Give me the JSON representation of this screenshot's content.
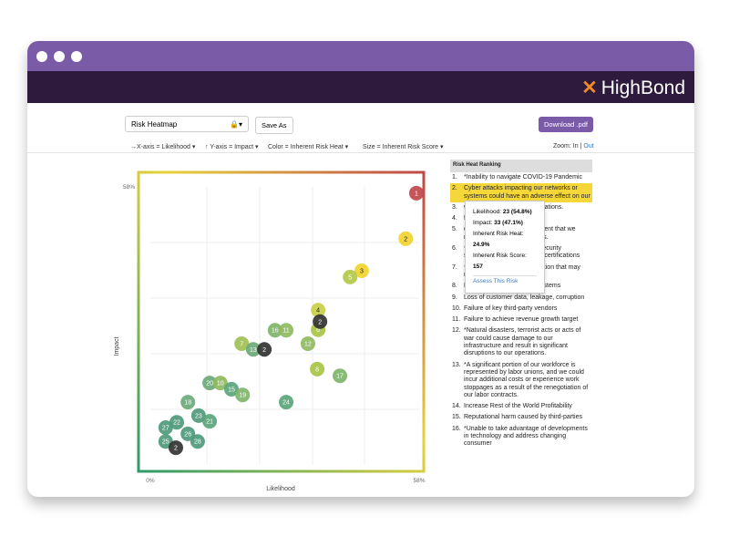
{
  "app": {
    "brand": "HighBond"
  },
  "toolbar": {
    "select": "Risk Heatmap",
    "save": "Save As",
    "download": "Download .pdf",
    "options": [
      "→X-axis = Likelihood ▾",
      "↑ Y-axis = Impact ▾",
      "Color = Inherent Risk Heat ▾",
      "Size = Inherent Risk Score ▾"
    ],
    "zoom_label": "Zoom:",
    "zoom_in": "In",
    "zoom_sep": "|",
    "zoom_out": "Out"
  },
  "chart_data": {
    "type": "scatter",
    "x_label": "Likelihood",
    "y_label": "Impact",
    "xlim": [
      0,
      58
    ],
    "ylim": [
      0,
      58
    ],
    "xticks": [
      {
        "value": 0,
        "label": "0%"
      },
      {
        "value": 58,
        "label": "58%"
      }
    ],
    "yticks": [
      {
        "value": 58,
        "label": "58%"
      }
    ],
    "points": [
      {
        "label": "1",
        "x": 57.4,
        "y": 56.7,
        "color": "#c0474a"
      },
      {
        "label": "2",
        "x": 55.1,
        "y": 47.2,
        "color": "#f2d431"
      },
      {
        "label": "3",
        "x": 45.6,
        "y": 40.5,
        "color": "#f2d431"
      },
      {
        "label": "5",
        "x": 43.1,
        "y": 39.2,
        "color": "#b3c84a"
      },
      {
        "label": "4",
        "x": 36.2,
        "y": 32.3,
        "color": "#c9cf45"
      },
      {
        "label": "6",
        "x": 36.2,
        "y": 28.2,
        "color": "#a9c447"
      },
      {
        "label": "2",
        "x": 36.6,
        "y": 29.9,
        "color": "#333333"
      },
      {
        "label": "16",
        "x": 26.9,
        "y": 28.1,
        "color": "#7fb46a"
      },
      {
        "label": "11",
        "x": 29.3,
        "y": 28.1,
        "color": "#8fba5f"
      },
      {
        "label": "12",
        "x": 34.0,
        "y": 25.3,
        "color": "#8fba5f"
      },
      {
        "label": "7",
        "x": 19.7,
        "y": 25.3,
        "color": "#9fc052"
      },
      {
        "label": "13",
        "x": 22.2,
        "y": 24.1,
        "color": "#6aa978"
      },
      {
        "label": "2",
        "x": 24.6,
        "y": 24.1,
        "color": "#333333"
      },
      {
        "label": "8",
        "x": 36.0,
        "y": 20.0,
        "color": "#a9c447"
      },
      {
        "label": "17",
        "x": 40.9,
        "y": 18.6,
        "color": "#7fb46a"
      },
      {
        "label": "20",
        "x": 12.8,
        "y": 17.1,
        "color": "#6aa978"
      },
      {
        "label": "10",
        "x": 15.1,
        "y": 17.1,
        "color": "#8fba5f"
      },
      {
        "label": "15",
        "x": 17.5,
        "y": 15.8,
        "color": "#5aa57a"
      },
      {
        "label": "19",
        "x": 19.9,
        "y": 14.6,
        "color": "#7fb46a"
      },
      {
        "label": "24",
        "x": 29.3,
        "y": 13.1,
        "color": "#5aa57a"
      },
      {
        "label": "18",
        "x": 8.1,
        "y": 13.1,
        "color": "#6aa978"
      },
      {
        "label": "23",
        "x": 10.4,
        "y": 10.3,
        "color": "#4f9a7c"
      },
      {
        "label": "21",
        "x": 12.8,
        "y": 9.1,
        "color": "#5aa57a"
      },
      {
        "label": "22",
        "x": 5.7,
        "y": 8.9,
        "color": "#4f9a7c"
      },
      {
        "label": "27",
        "x": 3.3,
        "y": 7.8,
        "color": "#4f9a7c"
      },
      {
        "label": "26",
        "x": 8.1,
        "y": 6.5,
        "color": "#4f9a7c"
      },
      {
        "label": "28",
        "x": 10.2,
        "y": 4.9,
        "color": "#4f9a7c"
      },
      {
        "label": "25",
        "x": 3.3,
        "y": 4.9,
        "color": "#4f9a7c"
      },
      {
        "label": "2",
        "x": 5.5,
        "y": 3.6,
        "color": "#333333"
      }
    ]
  },
  "ranking": {
    "title": "Risk Heat Ranking",
    "items": [
      {
        "num": "1.",
        "text": "*Inability to navigate COVID-19 Pandemic"
      },
      {
        "num": "2.",
        "text": "Cyber attacks impacting our networks or systems could have an adverse effect on our"
      },
      {
        "num": "3.",
        "text": "work under ly affect our operations."
      },
      {
        "num": "4.",
        "text": "faction or"
      },
      {
        "num": "5.",
        "text": "d vendors to provide equipment that we need to operate our business."
      },
      {
        "num": "6.",
        "text": "*Adherence to information security standards, frameworks, and certifications"
      },
      {
        "num": "7.",
        "text": "*We face significant competition that may reduce our profits."
      },
      {
        "num": "8.",
        "text": "Failure of key information systems"
      },
      {
        "num": "9.",
        "text": "Loss of customer data, leakage, corruption"
      },
      {
        "num": "10.",
        "text": "Failure of key third-party vendors"
      },
      {
        "num": "11.",
        "text": "Failure to achieve revenue growth target"
      },
      {
        "num": "12.",
        "text": "*Natural disasters, terrorist acts or acts of war could cause damage to our infrastructure and result in significant disruptions to our operations."
      },
      {
        "num": "13.",
        "text": "*A significant portion of our workforce is represented by labor unions, and we could incur additional costs or experience work stoppages as a result of the renegotiation of our labor contracts."
      },
      {
        "num": "14.",
        "text": "Increase Rest of the World Profitability"
      },
      {
        "num": "15.",
        "text": "Reputational harm caused by third-parties"
      },
      {
        "num": "16.",
        "text": "*Unable to take advantage of developments in technology and address changing consumer"
      }
    ]
  },
  "tooltip": {
    "rows": [
      {
        "label": "Likelihood:",
        "value": "23 (54.8%)"
      },
      {
        "label": "Impact:",
        "value": "33 (47.1%)"
      },
      {
        "label": "Inherent Risk Heat:",
        "value": "24.9%"
      },
      {
        "label": "Inherent Risk Score:",
        "value": "157"
      }
    ],
    "link": "Assess This Risk"
  }
}
